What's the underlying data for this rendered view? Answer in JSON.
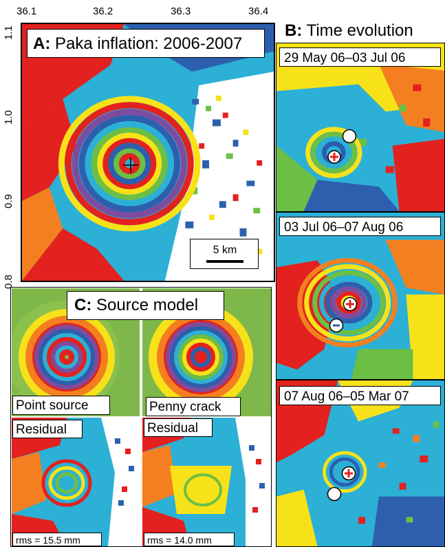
{
  "axes": {
    "x_ticks": [
      "36.1",
      "36.2",
      "36.3",
      "36.4"
    ],
    "y_ticks": [
      "1.1",
      "1.0",
      "0.9",
      "0.8"
    ]
  },
  "panel_a": {
    "letter": "A:",
    "title": "Paka inflation: 2006-2007",
    "scale_bar": "5 km"
  },
  "panel_b": {
    "letter": "B:",
    "title": "Time evolution",
    "frames": [
      {
        "label": "29 May 06–03 Jul 06"
      },
      {
        "label": "03 Jul 06–07 Aug 06"
      },
      {
        "label": "07 Aug 06–05 Mar 07"
      }
    ]
  },
  "panel_c": {
    "letter": "C:",
    "title": "Source model",
    "models": [
      {
        "label": "Point source",
        "residual_label": "Residual",
        "rms": "rms = 15.5 mm"
      },
      {
        "label": "Penny crack",
        "residual_label": "Residual",
        "rms": "rms = 14.0 mm"
      }
    ]
  },
  "colors": {
    "red": "#e3211f",
    "orange": "#f47f20",
    "yellow": "#f7e21a",
    "green": "#6cbf45",
    "cyan": "#22b3d8",
    "blue": "#2c5fae",
    "purple": "#7e4c9e",
    "model_green": "#7fb84a"
  },
  "icons": [
    "crosshair-icon",
    "plus-marker-icon",
    "minus-marker-icon",
    "white-circle-marker-icon"
  ]
}
